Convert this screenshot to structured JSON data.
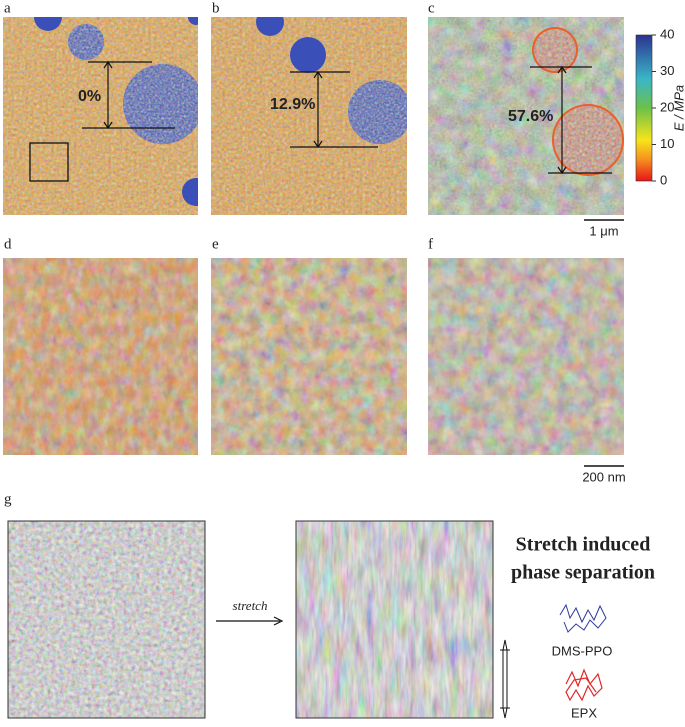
{
  "panels": {
    "labels": [
      "a",
      "b",
      "c",
      "d",
      "e",
      "f",
      "g"
    ]
  },
  "strains": [
    "0%",
    "12.9%",
    "57.6%"
  ],
  "colorbar": {
    "label": "E / MPa",
    "lim": [
      0,
      40
    ],
    "ticks": [
      0,
      10,
      20,
      30,
      40
    ]
  },
  "scale_bars": [
    "1 μm",
    "200 nm"
  ],
  "schematic": {
    "arrow_label": "stretch",
    "title_lines": [
      "Stretch induced",
      "phase separation"
    ],
    "legend": [
      "DMS-PPO",
      "EPX"
    ]
  }
}
